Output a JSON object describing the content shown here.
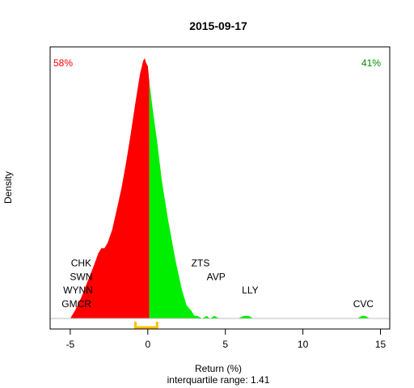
{
  "chart_data": {
    "type": "area",
    "title": "2015-09-17",
    "xlabel": "Return (%)",
    "ylabel": "Density",
    "subtitle": "interquartile range: 1.41",
    "xlim": [
      -6.3,
      15.6
    ],
    "ylim": [
      0,
      1
    ],
    "x_ticks": [
      -5,
      0,
      5,
      10,
      15
    ],
    "grid": false,
    "legend": "none",
    "pct_negative": "58%",
    "pct_positive": "41%",
    "colors": {
      "negative": "#ff0000",
      "positive": "#00ee00",
      "iqr": "#ffc000",
      "baseline": "#bebebe"
    },
    "iqr": [
      -0.8,
      0.6
    ],
    "split_at": 0.1,
    "density": {
      "x": [
        -5.0,
        -4.7,
        -4.3,
        -3.9,
        -3.5,
        -3.2,
        -3.0,
        -2.8,
        -2.6,
        -2.3,
        -2.0,
        -1.7,
        -1.4,
        -1.1,
        -0.8,
        -0.5,
        -0.3,
        -0.2,
        -0.1,
        0.0,
        0.1,
        0.3,
        0.6,
        0.9,
        1.3,
        1.8,
        2.2,
        2.5,
        2.8,
        3.0,
        3.2,
        3.5,
        3.8,
        4.0,
        4.3,
        4.6,
        5.0,
        5.8,
        6.2,
        6.5,
        6.8,
        7.2,
        13.2,
        13.5,
        13.8,
        14.0,
        14.3,
        14.6
      ],
      "y": [
        0.0,
        0.03,
        0.08,
        0.14,
        0.2,
        0.25,
        0.27,
        0.27,
        0.29,
        0.34,
        0.42,
        0.5,
        0.6,
        0.71,
        0.83,
        0.94,
        0.99,
        1.0,
        0.98,
        0.97,
        0.91,
        0.81,
        0.68,
        0.53,
        0.38,
        0.22,
        0.11,
        0.05,
        0.03,
        0.01,
        0.01,
        0.0,
        0.01,
        0.0,
        0.01,
        0.0,
        0.0,
        0.0,
        0.01,
        0.01,
        0.0,
        0.0,
        0.0,
        0.0,
        0.01,
        0.01,
        0.0,
        0.0
      ]
    },
    "annotations": [
      {
        "text": "CHK",
        "x": -4.3,
        "y": 0.2
      },
      {
        "text": "SWN",
        "x": -4.3,
        "y": 0.148
      },
      {
        "text": "WYNN",
        "x": -4.5,
        "y": 0.096
      },
      {
        "text": "GMCR",
        "x": -4.6,
        "y": 0.044
      },
      {
        "text": "ZTS",
        "x": 3.4,
        "y": 0.2
      },
      {
        "text": "AVP",
        "x": 4.4,
        "y": 0.148
      },
      {
        "text": "LLY",
        "x": 6.6,
        "y": 0.096
      },
      {
        "text": "CVC",
        "x": 13.9,
        "y": 0.044
      }
    ]
  }
}
